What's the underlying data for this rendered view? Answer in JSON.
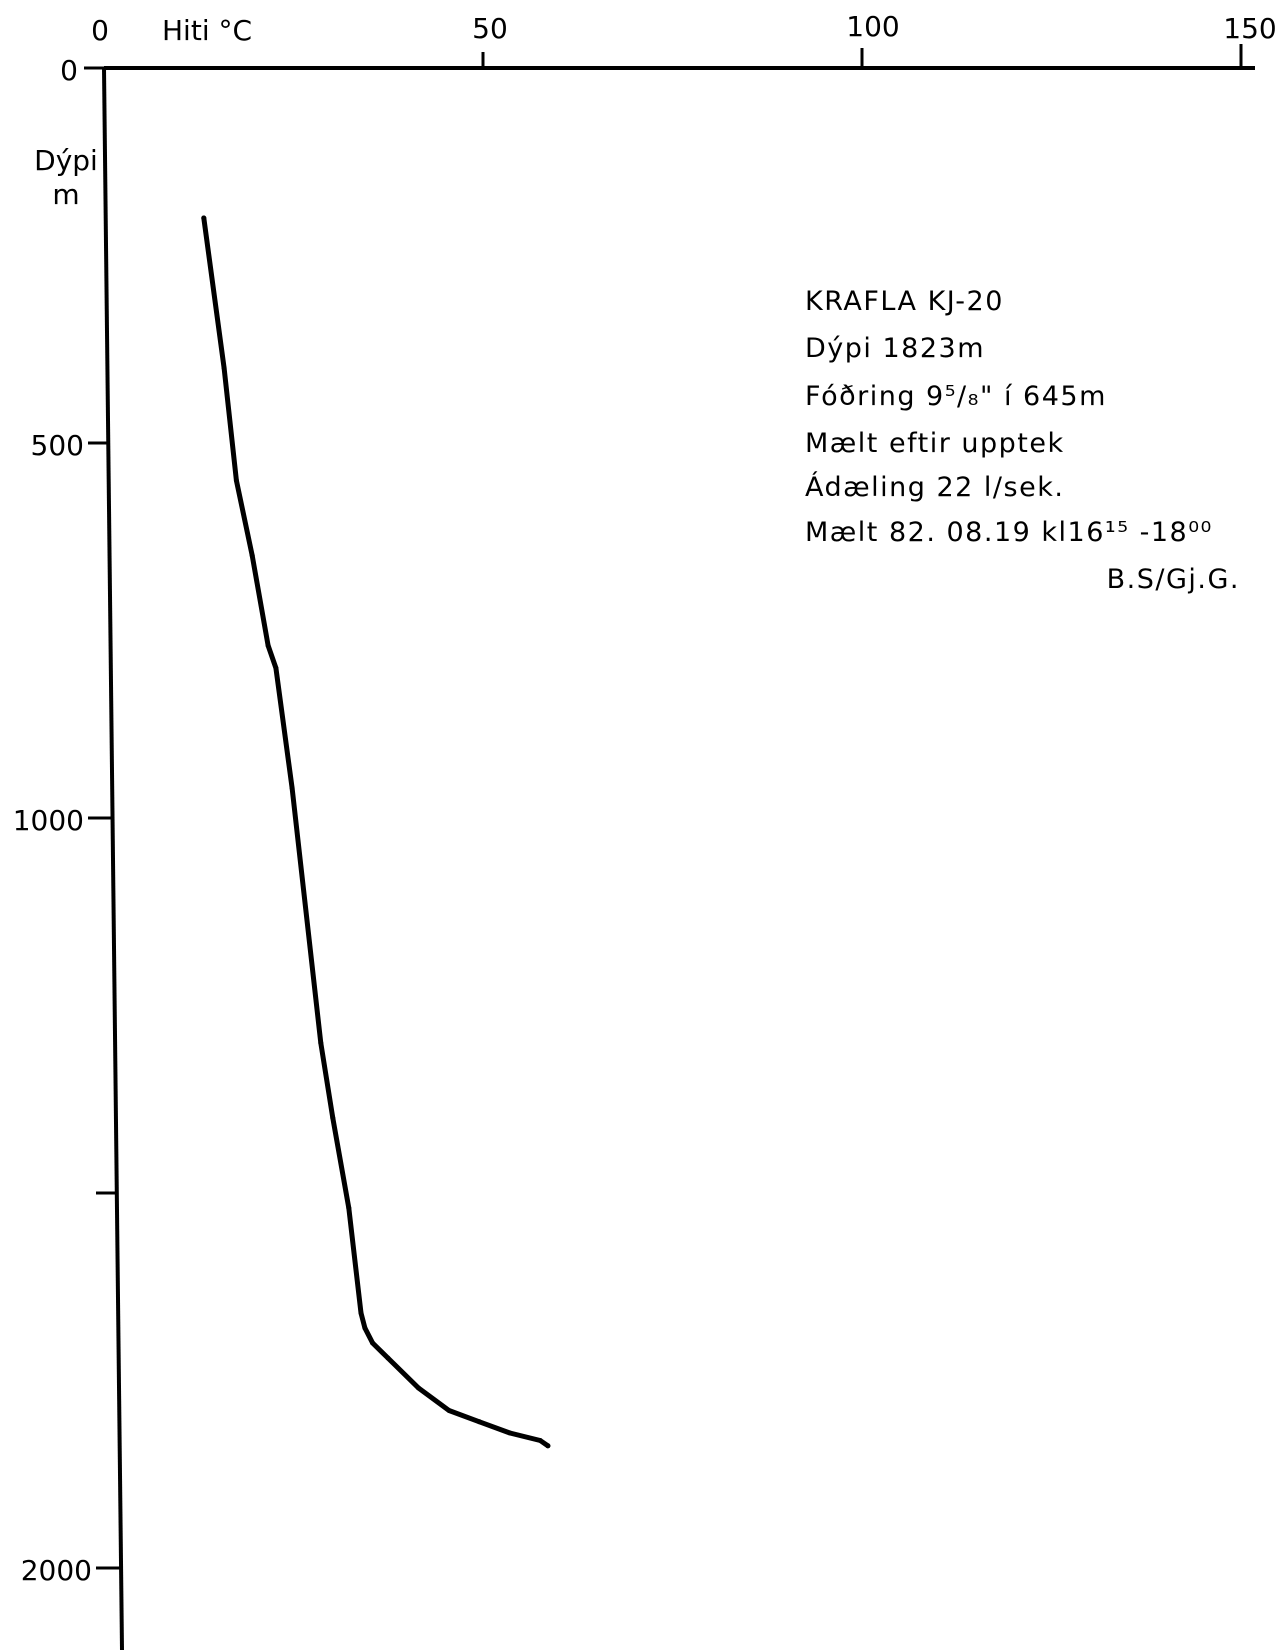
{
  "chart_data": {
    "type": "line",
    "x_axis": {
      "label": "Hiti °C",
      "ticks": [
        0,
        50,
        100,
        150
      ],
      "tick_labels": [
        "0",
        "50",
        "100",
        "150"
      ],
      "range": [
        0,
        150
      ],
      "position": "top"
    },
    "y_axis": {
      "label_line1": "Dýpi",
      "label_line2": "m",
      "ticks": [
        0,
        500,
        1000,
        1500,
        2000
      ],
      "tick_labels": [
        "0",
        "500",
        "1000",
        "",
        "2000"
      ],
      "range": [
        0,
        2100
      ],
      "inverted": true
    },
    "series": [
      {
        "x": [
          13,
          15.5,
          17,
          19,
          21,
          22,
          24,
          27.5,
          29,
          31,
          32.5,
          33,
          34,
          36,
          40,
          44,
          48,
          52,
          56,
          57
        ],
        "y": [
          200,
          400,
          550,
          650,
          770,
          800,
          960,
          1300,
          1400,
          1520,
          1660,
          1680,
          1700,
          1720,
          1760,
          1790,
          1805,
          1820,
          1830,
          1837
        ]
      }
    ],
    "annotation": {
      "title": "KRAFLA KJ-20",
      "depth": "Dýpi 1823m",
      "casing": "Fóðring  9⁵/₈\" í 645m",
      "measured_after": "Mælt eftir upptek",
      "flow": "Ádæling  22 l/sek.",
      "date": "Mælt 82. 08.19  kl16¹⁵ -18⁰⁰",
      "initials": "B.S/Gj.G."
    },
    "grid": false
  }
}
